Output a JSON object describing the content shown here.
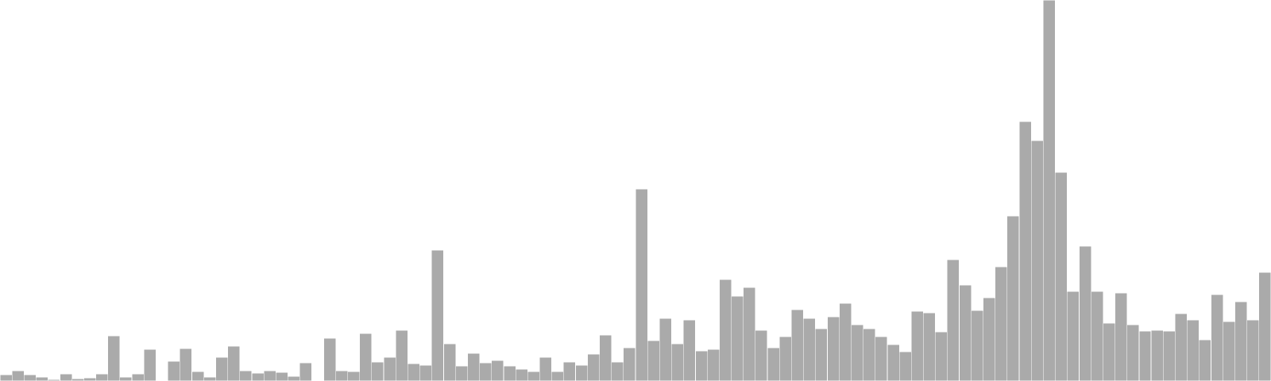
{
  "chart_data": {
    "type": "bar",
    "title": "",
    "xlabel": "",
    "ylabel": "",
    "grid": false,
    "legend": "none",
    "bar_color": "#aaaaaa",
    "bar_edge_color": "#ffffff",
    "ylim": [
      0,
      480
    ],
    "values": [
      8,
      13,
      8,
      5,
      2,
      9,
      3,
      4,
      9,
      57,
      5,
      9,
      40,
      0,
      25,
      41,
      12,
      5,
      30,
      44,
      13,
      10,
      13,
      11,
      6,
      23,
      0,
      54,
      13,
      12,
      60,
      24,
      30,
      64,
      22,
      20,
      165,
      47,
      19,
      35,
      23,
      26,
      19,
      15,
      12,
      30,
      12,
      24,
      20,
      34,
      58,
      24,
      42,
      242,
      51,
      79,
      47,
      77,
      38,
      40,
      128,
      107,
      118,
      64,
      42,
      56,
      90,
      79,
      66,
      81,
      98,
      71,
      66,
      56,
      46,
      37,
      88,
      86,
      62,
      153,
      121,
      89,
      105,
      144,
      208,
      327,
      303,
      480,
      263,
      113,
      170,
      113,
      73,
      111,
      71,
      63,
      64,
      63,
      85,
      77,
      52,
      109,
      75,
      100,
      77,
      137
    ]
  }
}
